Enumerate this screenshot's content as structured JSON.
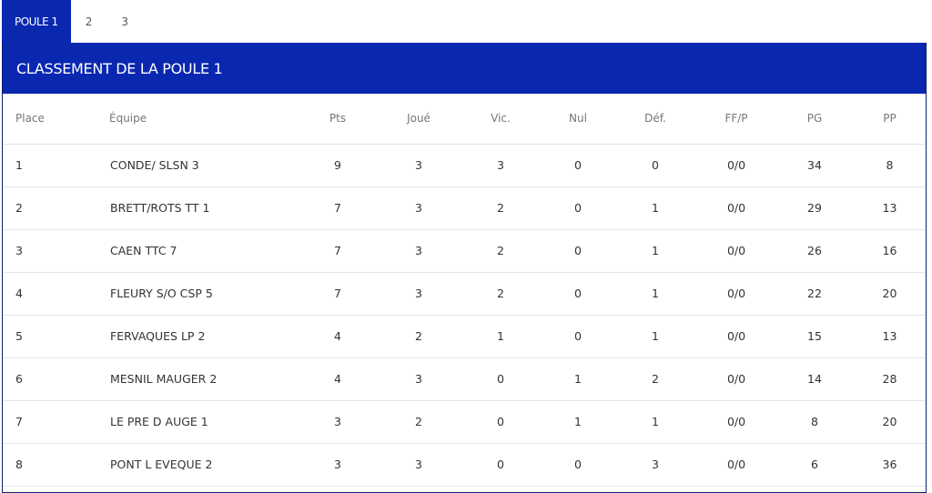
{
  "tabs": [
    "POULE 1",
    "2",
    "3"
  ],
  "title": "CLASSEMENT DE LA POULE 1",
  "columns": [
    "Place",
    "Équipe",
    "Pts",
    "Joué",
    "Vic.",
    "Nul",
    "Déf.",
    "FF/P",
    "PG",
    "PP"
  ],
  "rows": [
    [
      "1",
      "CONDE/ SLSN 3",
      "9",
      "3",
      "3",
      "0",
      "0",
      "0/0",
      "34",
      "8"
    ],
    [
      "2",
      "BRETT/ROTS TT 1",
      "7",
      "3",
      "2",
      "0",
      "1",
      "0/0",
      "29",
      "13"
    ],
    [
      "3",
      "CAEN TTC 7",
      "7",
      "3",
      "2",
      "0",
      "1",
      "0/0",
      "26",
      "16"
    ],
    [
      "4",
      "FLEURY S/O CSP 5",
      "7",
      "3",
      "2",
      "0",
      "1",
      "0/0",
      "22",
      "20"
    ],
    [
      "5",
      "FERVAQUES LP 2",
      "4",
      "2",
      "1",
      "0",
      "1",
      "0/0",
      "15",
      "13"
    ],
    [
      "6",
      "MESNIL MAUGER 2",
      "4",
      "3",
      "0",
      "1",
      "2",
      "0/0",
      "14",
      "28"
    ],
    [
      "7",
      "LE PRE D AUGE 1",
      "3",
      "2",
      "0",
      "1",
      "1",
      "0/0",
      "8",
      "20"
    ],
    [
      "8",
      "PONT L EVEQUE 2",
      "3",
      "3",
      "0",
      "0",
      "3",
      "0/0",
      "6",
      "36"
    ]
  ],
  "colors": {
    "accent": "#0a27b0"
  }
}
